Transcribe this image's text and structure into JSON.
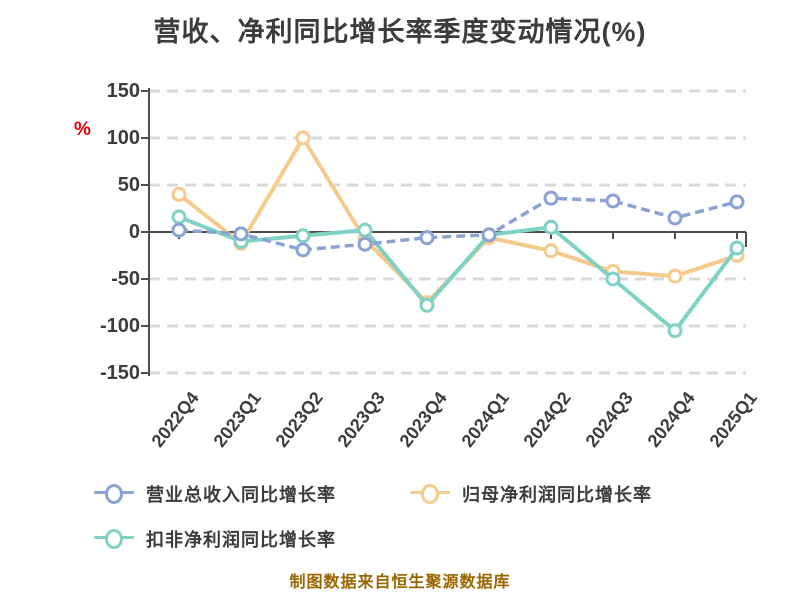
{
  "chart_data": {
    "type": "line",
    "title": "营收、净利同比增长率季度变动情况(%)",
    "y_unit": "%",
    "source_note": "制图数据来自恒生聚源数据库",
    "categories": [
      "2022Q4",
      "2023Q1",
      "2023Q2",
      "2023Q3",
      "2023Q4",
      "2024Q1",
      "2024Q2",
      "2024Q3",
      "2024Q4",
      "2025Q1"
    ],
    "series": [
      {
        "id": "revenue-growth",
        "name": "营业总收入同比增长率",
        "color": "#8ba3d4",
        "line_style": "dashed",
        "marker": "circle-white",
        "values": [
          2,
          -2,
          -19,
          -13,
          -6,
          -3,
          36,
          33,
          15,
          32
        ]
      },
      {
        "id": "net-profit-growth",
        "name": "归母净利润同比增长率",
        "color": "#f7ca8c",
        "line_style": "solid",
        "marker": "circle-white",
        "values": [
          40,
          -12,
          100,
          -8,
          -75,
          -6,
          -20,
          -42,
          -47,
          -25
        ]
      },
      {
        "id": "deducted-net-profit-growth",
        "name": "扣非净利润同比增长率",
        "color": "#7fd2c5",
        "line_style": "solid",
        "marker": "circle-white",
        "values": [
          16,
          -10,
          -4,
          2,
          -78,
          -3,
          5,
          -50,
          -105,
          -17
        ]
      }
    ],
    "ylim": [
      -150,
      150
    ],
    "yticks": [
      150,
      100,
      50,
      0,
      -50,
      -100,
      -150
    ],
    "grid": "horizontal-dashed",
    "legend_position": "bottom"
  },
  "colors": {
    "background": "#ffffff",
    "title_text": "#3c3c3c",
    "axis": "#4d4d4d",
    "gridline": "#d9d9d9",
    "tick_label": "#3c3c3c",
    "unit_label": "#e60000",
    "source_text": "#996600"
  }
}
